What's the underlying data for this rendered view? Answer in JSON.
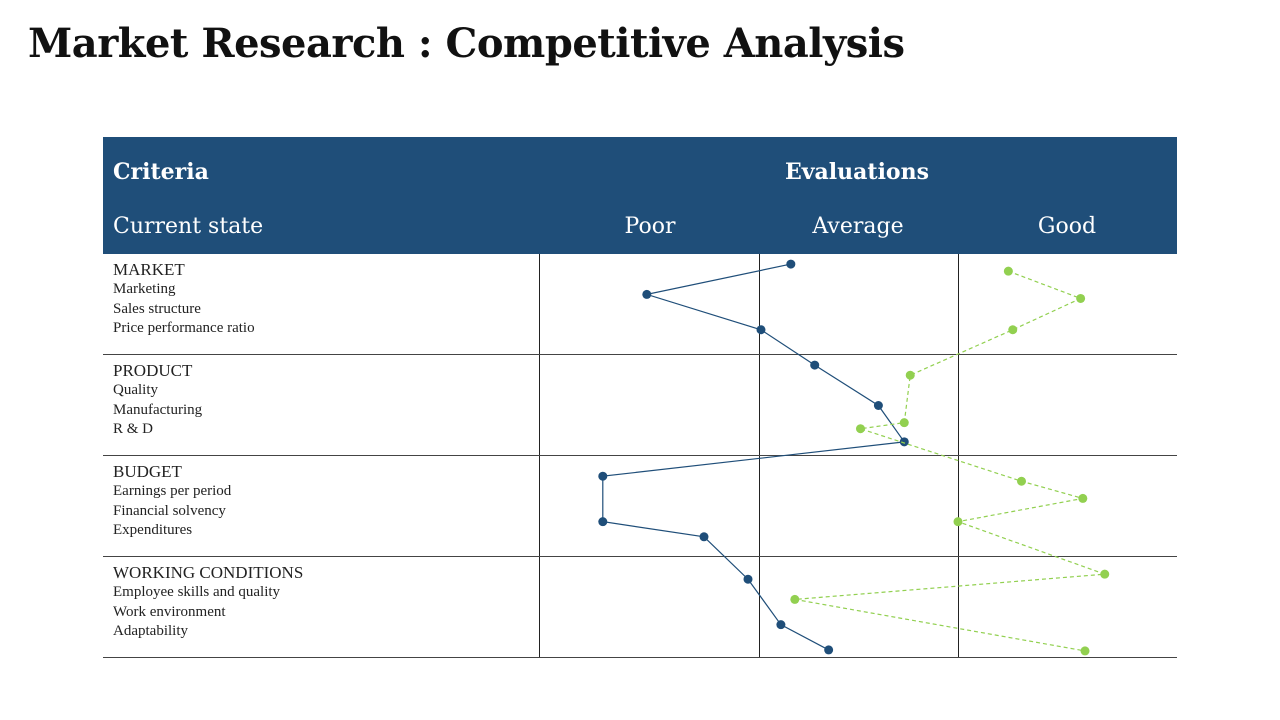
{
  "title": "Market Research : Competitive Analysis",
  "header": {
    "criteria": "Criteria",
    "evaluations": "Evaluations",
    "current_state": "Current state",
    "columns": [
      "Poor",
      "Average",
      "Good"
    ]
  },
  "rows": [
    {
      "category": "MARKET",
      "items": [
        "Marketing",
        "Sales structure",
        "Price performance ratio"
      ]
    },
    {
      "category": "PRODUCT",
      "items": [
        "Quality",
        "Manufacturing",
        "R & D"
      ]
    },
    {
      "category": "BUDGET",
      "items": [
        "Earnings per period",
        "Financial solvency",
        "Expenditures"
      ]
    },
    {
      "category": "WORKING CONDITIONS",
      "items": [
        "Employee skills and quality",
        "Work environment",
        "Adaptability"
      ]
    }
  ],
  "chart_data": {
    "type": "line",
    "categories": [
      "MARKET",
      "Marketing",
      "Sales structure",
      "Price performance ratio",
      "PRODUCT",
      "Quality",
      "Manufacturing",
      "R & D",
      "BUDGET",
      "Earnings per period",
      "Financial solvency",
      "Expenditures",
      "WORKING CONDITIONS",
      "Employee skills and quality",
      "Work environment",
      "Adaptability"
    ],
    "x_scale": [
      "Poor",
      "Average",
      "Good"
    ],
    "xlim": [
      0,
      3
    ],
    "series": [
      {
        "color": "#1F4E79",
        "style": "solid",
        "points": [
          {
            "y": 0.1,
            "x": 1.16
          },
          {
            "y": 0.4,
            "x": 0.49
          },
          {
            "y": 0.75,
            "x": 1.01
          },
          {
            "y": 1.1,
            "x": 1.28
          },
          {
            "y": 1.5,
            "x": 1.6
          },
          {
            "y": 1.86,
            "x": 1.73
          },
          {
            "y": 2.2,
            "x": 0.29
          },
          {
            "y": 2.65,
            "x": 0.29
          },
          {
            "y": 2.8,
            "x": 0.75
          },
          {
            "y": 3.22,
            "x": 0.95
          },
          {
            "y": 3.67,
            "x": 1.11
          },
          {
            "y": 3.92,
            "x": 1.35
          }
        ]
      },
      {
        "color": "#92D050",
        "style": "dashed",
        "points": [
          {
            "y": 0.17,
            "x": 2.23
          },
          {
            "y": 0.44,
            "x": 2.56
          },
          {
            "y": 0.75,
            "x": 2.25
          },
          {
            "y": 1.2,
            "x": 1.76
          },
          {
            "y": 1.67,
            "x": 1.73
          },
          {
            "y": 1.73,
            "x": 1.51
          },
          {
            "y": 2.25,
            "x": 2.29
          },
          {
            "y": 2.42,
            "x": 2.57
          },
          {
            "y": 2.65,
            "x": 2.0
          },
          {
            "y": 3.17,
            "x": 2.67
          },
          {
            "y": 3.42,
            "x": 1.18
          },
          {
            "y": 3.93,
            "x": 2.58
          }
        ]
      }
    ]
  }
}
